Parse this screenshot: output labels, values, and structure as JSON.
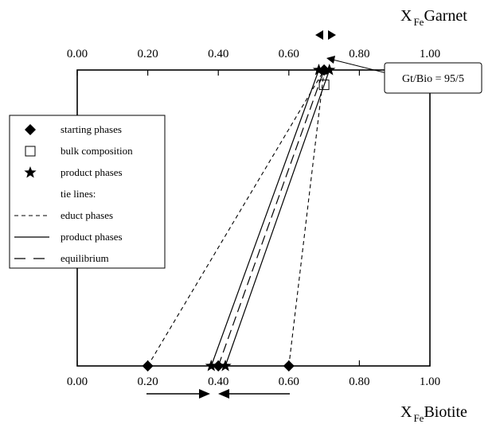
{
  "chart_data": {
    "type": "scatter",
    "top_axis": {
      "title_main": "X",
      "title_sub": "Fe",
      "title_rest": "Garnet",
      "range": [
        0,
        1
      ],
      "ticks": [
        {
          "value": 0.0,
          "label": "0.00"
        },
        {
          "value": 0.2,
          "label": "0.20"
        },
        {
          "value": 0.4,
          "label": "0.40"
        },
        {
          "value": 0.6,
          "label": "0.60"
        },
        {
          "value": 0.8,
          "label": "0.80"
        },
        {
          "value": 1.0,
          "label": "1.00"
        }
      ]
    },
    "bottom_axis": {
      "title_main": "X",
      "title_sub": "Fe",
      "title_rest": "Biotite",
      "range": [
        0,
        1
      ],
      "ticks": [
        {
          "value": 0.0,
          "label": "0.00"
        },
        {
          "value": 0.2,
          "label": "0.20"
        },
        {
          "value": 0.4,
          "label": "0.40"
        },
        {
          "value": 0.6,
          "label": "0.60"
        },
        {
          "value": 0.8,
          "label": "0.80"
        },
        {
          "value": 1.0,
          "label": "1.00"
        }
      ]
    },
    "grid": false,
    "starting_phases": {
      "biotite": [
        0.2,
        0.4,
        0.6
      ],
      "garnet": [
        0.7,
        0.7,
        0.7
      ]
    },
    "product_phases": {
      "biotite": [
        0.38,
        0.42
      ],
      "garnet": [
        0.685,
        0.715
      ]
    },
    "bulk_composition": {
      "garnet": 0.7,
      "bulk_fraction": 0.95
    },
    "tie_lines": {
      "educt": [
        {
          "biotite": 0.2,
          "garnet": 0.7
        },
        {
          "biotite": 0.6,
          "garnet": 0.7
        }
      ],
      "product": [
        {
          "biotite": 0.38,
          "garnet": 0.685
        },
        {
          "biotite": 0.42,
          "garnet": 0.715
        }
      ],
      "equilibrium": [
        {
          "biotite": 0.4,
          "garnet": 0.7
        }
      ]
    },
    "annotation": "Gt/Bio = 95/5",
    "legend": {
      "position": "left",
      "items": [
        {
          "marker": "diamond",
          "label": "starting phases"
        },
        {
          "marker": "square",
          "label": "bulk composition"
        },
        {
          "marker": "star",
          "label": "product phases"
        },
        {
          "marker": "none",
          "label": "tie lines:"
        },
        {
          "marker": "short-dash",
          "label": "educt phases"
        },
        {
          "marker": "solid",
          "label": "product phases"
        },
        {
          "marker": "long-dash",
          "label": "equilibrium"
        }
      ]
    }
  }
}
